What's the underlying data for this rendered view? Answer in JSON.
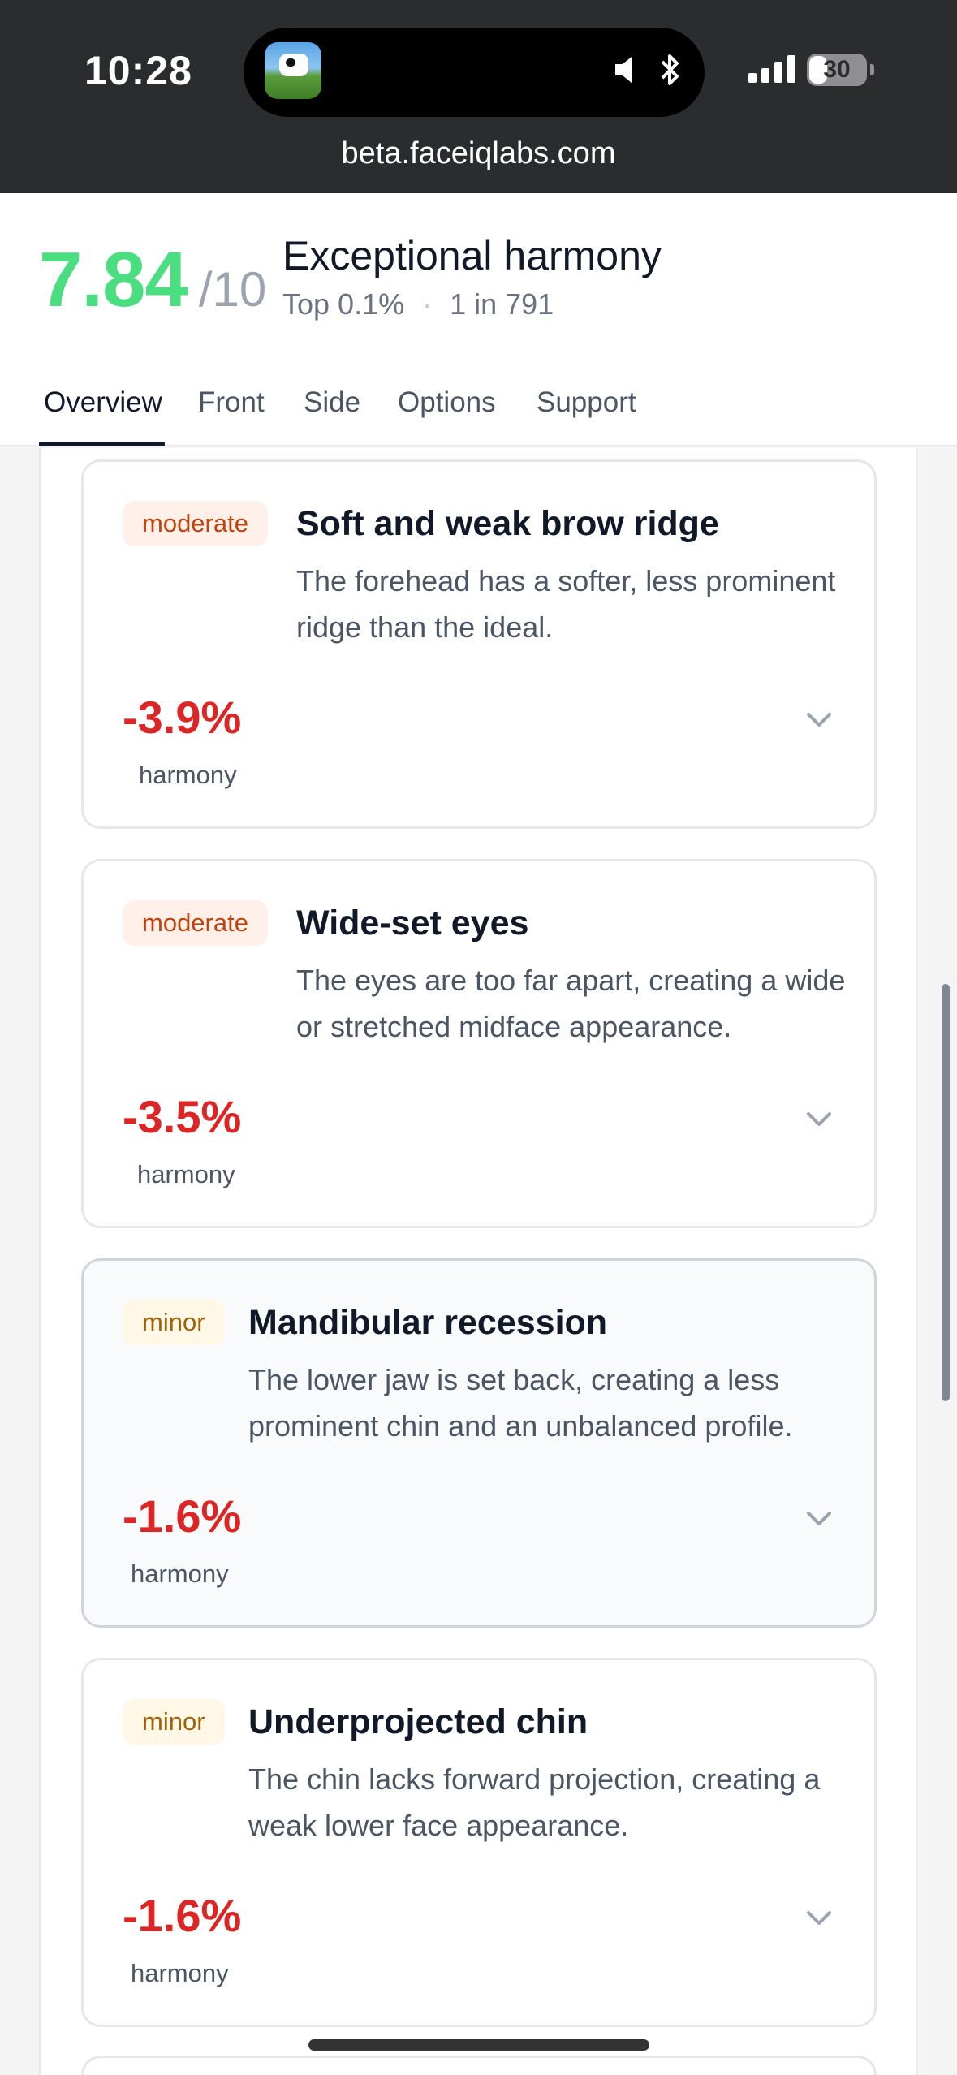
{
  "status_bar": {
    "time": "10:28",
    "battery": "30",
    "battery_level": 0.3,
    "url": "beta.faceiqlabs.com"
  },
  "header": {
    "score": "7.84",
    "score_denominator": "/10",
    "headline": "Exceptional harmony",
    "percentile": "Top 0.1%",
    "rarity": "1 in 791",
    "separator": "·"
  },
  "tabs": [
    {
      "label": "Overview",
      "active": true
    },
    {
      "label": "Front",
      "active": false
    },
    {
      "label": "Side",
      "active": false
    },
    {
      "label": "Options",
      "active": false
    },
    {
      "label": "Support",
      "active": false
    }
  ],
  "findings": [
    {
      "severity": "moderate",
      "title": "Soft and weak brow ridge",
      "description": "The forehead has a softer, less prominent ridge than the ideal.",
      "impact": "-3.9%",
      "impact_label": "harmony"
    },
    {
      "severity": "moderate",
      "title": "Wide-set eyes",
      "description": "The eyes are too far apart, creating a wide or stretched midface appearance.",
      "impact": "-3.5%",
      "impact_label": "harmony"
    },
    {
      "severity": "minor",
      "title": "Mandibular recession",
      "description": "The lower jaw is set back, creating a less prominent chin and an unbalanced profile.",
      "impact": "-1.6%",
      "impact_label": "harmony"
    },
    {
      "severity": "minor",
      "title": "Underprojected chin",
      "description": "The chin lacks forward projection, creating a weak lower face appearance.",
      "impact": "-1.6%",
      "impact_label": "harmony"
    }
  ],
  "colors": {
    "score": "#4ade80",
    "impact": "#dc2626",
    "moderate_badge_text": "#c2410c",
    "minor_badge_text": "#a16207"
  }
}
